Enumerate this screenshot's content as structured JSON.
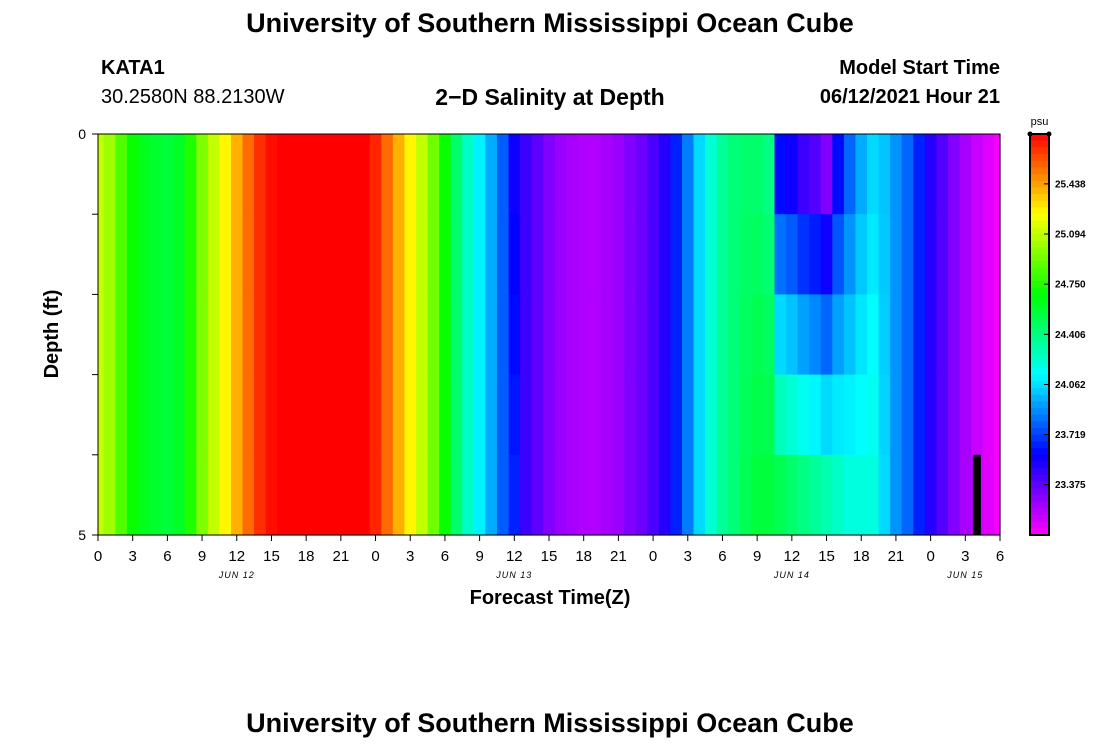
{
  "header": {
    "title": "University of Southern Mississippi Ocean Cube",
    "station_id": "KATA1",
    "station_coords": "30.2580N  88.2130W",
    "plot_title": "2−D Salinity at Depth",
    "start_label": "Model Start Time",
    "start_value": "06/12/2021 Hour 21"
  },
  "footer": {
    "title": "University of Southern Mississippi Ocean Cube"
  },
  "chart_data": {
    "type": "heatmap",
    "title": "2−D Salinity at Depth",
    "xlabel": "Forecast Time(Z)",
    "ylabel": "Depth (ft)",
    "ylim": [
      0,
      5
    ],
    "y_tick_labels": [
      "0",
      "5"
    ],
    "x_hours": [
      0,
      1,
      2,
      3,
      4,
      5,
      6,
      7,
      8,
      9,
      10,
      11,
      12,
      13,
      14,
      15,
      16,
      17,
      18,
      19,
      20,
      21,
      22,
      23,
      24,
      25,
      26,
      27,
      28,
      29,
      30,
      31,
      32,
      33,
      34,
      35,
      36,
      37,
      38,
      39,
      40,
      41,
      42,
      43,
      44,
      45,
      46,
      47,
      48,
      49,
      50,
      51,
      52,
      53,
      54,
      55,
      56,
      57,
      58,
      59,
      60,
      61,
      62,
      63,
      64,
      65,
      66,
      67,
      68,
      69,
      70,
      71,
      72,
      73,
      74,
      75,
      76,
      77,
      78
    ],
    "x_tick_labels": [
      "0",
      "3",
      "6",
      "9",
      "12",
      "15",
      "18",
      "21",
      "0",
      "3",
      "6",
      "9",
      "12",
      "15",
      "18",
      "21",
      "0",
      "3",
      "6",
      "9",
      "12",
      "15",
      "18",
      "21",
      "0",
      "3",
      "6"
    ],
    "day_labels": [
      "JUN 12",
      "JUN 13",
      "JUN 14",
      "JUN 15"
    ],
    "colorbar": {
      "unit": "psu",
      "min": 23.03,
      "max": 25.78,
      "tick_labels": [
        "25.438",
        "25.094",
        "24.750",
        "24.406",
        "24.062",
        "23.719",
        "23.375"
      ]
    },
    "depth_levels": 5,
    "hourly_surface_salinity": [
      25.1,
      25.02,
      24.85,
      24.7,
      24.62,
      24.58,
      24.56,
      24.6,
      24.75,
      24.95,
      25.1,
      25.25,
      25.4,
      25.55,
      25.68,
      25.75,
      25.78,
      25.78,
      25.78,
      25.78,
      25.78,
      25.78,
      25.78,
      25.78,
      25.7,
      25.55,
      25.4,
      25.25,
      25.1,
      24.92,
      24.7,
      24.45,
      24.25,
      24.1,
      23.95,
      23.78,
      23.55,
      23.45,
      23.38,
      23.3,
      23.25,
      23.22,
      23.2,
      23.2,
      23.22,
      23.25,
      23.3,
      23.35,
      23.42,
      23.5,
      23.65,
      23.85,
      24.05,
      24.22,
      24.35,
      24.42,
      24.45,
      24.45,
      24.4,
      23.6,
      23.55,
      23.45,
      23.4,
      23.3,
      23.6,
      23.8,
      23.95,
      24.05,
      24.0,
      23.9,
      23.8,
      23.65,
      23.5,
      23.4,
      23.3,
      23.22,
      23.15,
      23.1,
      23.05
    ],
    "hourly_bottom_salinity": [
      25.1,
      25.02,
      24.85,
      24.7,
      24.62,
      24.58,
      24.56,
      24.6,
      24.75,
      24.95,
      25.1,
      25.25,
      25.4,
      25.55,
      25.68,
      25.75,
      25.78,
      25.78,
      25.78,
      25.78,
      25.78,
      25.78,
      25.78,
      25.78,
      25.7,
      25.55,
      25.4,
      25.25,
      25.1,
      24.92,
      24.7,
      24.45,
      24.25,
      24.1,
      23.95,
      23.78,
      23.65,
      23.45,
      23.38,
      23.3,
      23.25,
      23.22,
      23.2,
      23.2,
      23.22,
      23.25,
      23.3,
      23.35,
      23.42,
      23.5,
      23.65,
      23.85,
      24.05,
      24.22,
      24.35,
      24.42,
      24.5,
      24.55,
      24.55,
      24.5,
      24.45,
      24.4,
      24.35,
      24.3,
      24.25,
      24.2,
      24.2,
      24.2,
      24.05,
      23.9,
      23.8,
      23.65,
      23.5,
      23.4,
      23.3,
      23.22,
      23.15,
      23.1,
      23.05
    ],
    "annotations": [
      {
        "type": "marker-bar",
        "hour": 76,
        "depth_from": 4,
        "depth_to": 5
      }
    ]
  }
}
